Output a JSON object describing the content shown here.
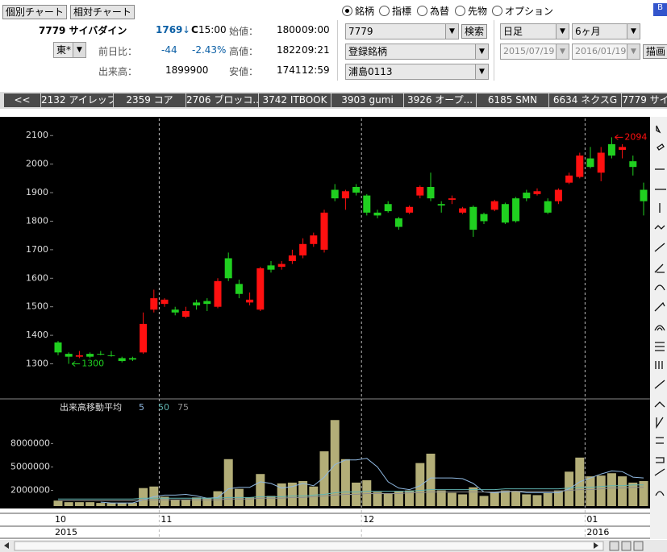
{
  "ui": {
    "buttons": [
      "個別チャート",
      "相対チャート"
    ],
    "b_button": "B",
    "symbol": "7779 サイバダイン",
    "price": "1769",
    "price_arrow": "↓",
    "close_mark": "C",
    "close_time": "15:00",
    "market": "東*",
    "change_label": "前日比：",
    "change": "-44",
    "change_pct": "-2.43%",
    "volume_label": "出来高：",
    "volume": "1899900",
    "open_label": "始値：",
    "open_value": "1800",
    "open_time": "09:00",
    "high_label": "高値：",
    "high_value": "1822",
    "high_time": "09:21",
    "low_label": "安値：",
    "low_value": "1741",
    "low_time": "12:59",
    "radios": [
      "銘柄",
      "指標",
      "為替",
      "先物",
      "オプション"
    ],
    "code_input": "7779",
    "search": "検索",
    "list_select": "登録銘柄",
    "list_name": "浦島0113",
    "period": "日足",
    "span": "6ヶ月",
    "from": "2015/07/19",
    "to": "2016/01/19",
    "draw": "描画",
    "tabs": [
      "<<",
      "2132 アイレップ",
      "2359 コア",
      "2706 ブロッコ...",
      "3742 ITBOOK",
      "3903 gumi",
      "3926 オープ...",
      "6185 SMN",
      "6634 ネクスG",
      "7779 サイ"
    ]
  },
  "chart_data": [
    {
      "type": "candlestick",
      "up_color": "#ff1010",
      "down_color": "#20d020",
      "categories": [
        "10",
        null,
        null,
        null,
        null,
        null,
        null,
        null,
        null,
        null,
        "11",
        null,
        null,
        null,
        null,
        null,
        null,
        null,
        null,
        null,
        null,
        null,
        null,
        null,
        null,
        null,
        null,
        null,
        null,
        "12",
        null,
        null,
        null,
        null,
        null,
        null,
        null,
        null,
        null,
        null,
        null,
        null,
        null,
        null,
        null,
        null,
        null,
        null,
        null,
        null,
        "01",
        null,
        null,
        null,
        null,
        null
      ],
      "years": [
        "2015",
        null,
        null,
        null,
        null,
        null,
        null,
        null,
        null,
        null,
        null,
        null,
        null,
        null,
        null,
        null,
        null,
        null,
        null,
        null,
        null,
        null,
        null,
        null,
        null,
        null,
        null,
        null,
        null,
        null,
        null,
        null,
        null,
        null,
        null,
        null,
        null,
        null,
        null,
        null,
        null,
        null,
        null,
        null,
        null,
        null,
        null,
        null,
        null,
        null,
        "2016",
        null,
        null,
        null,
        null,
        null
      ],
      "open": [
        1375,
        1335,
        1325,
        1335,
        1335,
        1330,
        1320,
        1320,
        1340,
        1490,
        1510,
        1490,
        1465,
        1515,
        1520,
        1500,
        1670,
        1580,
        1515,
        1490,
        1645,
        1640,
        1660,
        1680,
        1720,
        1700,
        1910,
        1880,
        1920,
        1890,
        1830,
        1860,
        1810,
        1830,
        1890,
        1920,
        1860,
        1875,
        1830,
        1850,
        1825,
        1840,
        1860,
        1880,
        1900,
        1895,
        1870,
        1870,
        1935,
        1955,
        2020,
        1970,
        2070,
        2050,
        2010,
        1910
      ],
      "high": [
        1380,
        1340,
        1345,
        1340,
        1345,
        1345,
        1325,
        1325,
        1480,
        1560,
        1530,
        1500,
        1500,
        1525,
        1530,
        1600,
        1690,
        1595,
        1550,
        1640,
        1660,
        1660,
        1700,
        1740,
        1760,
        1840,
        1930,
        1910,
        1930,
        1895,
        1840,
        1870,
        1815,
        1855,
        1925,
        1970,
        1870,
        1890,
        1850,
        1855,
        1830,
        1875,
        1865,
        1885,
        1910,
        1915,
        1880,
        1915,
        1970,
        2040,
        2060,
        2060,
        2094,
        2070,
        2030,
        1935
      ],
      "low": [
        1330,
        1300,
        1320,
        1320,
        1330,
        1325,
        1305,
        1310,
        1335,
        1480,
        1500,
        1470,
        1460,
        1490,
        1485,
        1495,
        1590,
        1530,
        1505,
        1485,
        1620,
        1630,
        1650,
        1670,
        1710,
        1690,
        1870,
        1840,
        1890,
        1820,
        1810,
        1830,
        1770,
        1825,
        1880,
        1870,
        1830,
        1860,
        1825,
        1745,
        1790,
        1835,
        1790,
        1795,
        1870,
        1890,
        1825,
        1860,
        1930,
        1950,
        1985,
        1940,
        2020,
        2020,
        1960,
        1820
      ],
      "close": [
        1340,
        1325,
        1330,
        1325,
        1335,
        1330,
        1310,
        1315,
        1440,
        1530,
        1525,
        1480,
        1485,
        1505,
        1510,
        1590,
        1600,
        1545,
        1525,
        1635,
        1630,
        1650,
        1680,
        1720,
        1750,
        1830,
        1880,
        1905,
        1900,
        1830,
        1820,
        1835,
        1780,
        1850,
        1920,
        1880,
        1855,
        1880,
        1845,
        1770,
        1800,
        1870,
        1795,
        1800,
        1880,
        1905,
        1830,
        1910,
        1960,
        2030,
        1990,
        2040,
        2030,
        2060,
        1990,
        1870
      ],
      "ylim": [
        1180,
        2160
      ],
      "yticks": [
        1300,
        1400,
        1500,
        1600,
        1700,
        1800,
        1900,
        2000,
        2100
      ],
      "annotations": [
        {
          "index": 1,
          "field": "low"
        },
        {
          "index": 52,
          "field": "high"
        }
      ]
    },
    {
      "type": "bar",
      "title": "出来高移動平均",
      "color": "#b3ae78",
      "values": [
        700000,
        500000,
        500000,
        500000,
        400000,
        400000,
        400000,
        400000,
        2300000,
        2500000,
        1200000,
        800000,
        800000,
        1100000,
        1000000,
        1900000,
        6000000,
        2200000,
        1100000,
        4100000,
        1300000,
        2900000,
        3000000,
        3200000,
        2500000,
        7000000,
        11000000,
        6000000,
        3000000,
        3300000,
        1800000,
        1600000,
        1900000,
        2000000,
        5500000,
        6700000,
        2000000,
        1700000,
        1500000,
        2400000,
        1300000,
        1800000,
        2000000,
        1900000,
        1500000,
        1400000,
        1700000,
        2000000,
        4400000,
        6200000,
        3800000,
        3900000,
        4200000,
        3800000,
        3000000,
        3200000
      ],
      "series": [
        {
          "name": "5",
          "color": "#8fb8e0",
          "values": [
            null,
            null,
            null,
            null,
            500000,
            400000,
            400000,
            400000,
            800000,
            1200000,
            1400000,
            1400000,
            1500000,
            1300000,
            1000000,
            1100000,
            2200000,
            2400000,
            2400000,
            3100000,
            2900000,
            2300000,
            2500000,
            2900000,
            2600000,
            3700000,
            5300000,
            5900000,
            5900000,
            6100000,
            5000000,
            3100000,
            2300000,
            2100000,
            2600000,
            3600000,
            3600000,
            3600000,
            3500000,
            2900000,
            1800000,
            1700000,
            1800000,
            1900000,
            1700000,
            1700000,
            1700000,
            1700000,
            2200000,
            3100000,
            3600000,
            4100000,
            4500000,
            4400000,
            3700000,
            3600000
          ]
        },
        {
          "name": "50",
          "color": "#5fb3b0",
          "values": [
            900000,
            900000,
            900000,
            900000,
            900000,
            900000,
            900000,
            900000,
            1000000,
            1000000,
            1000000,
            1000000,
            1000000,
            1000000,
            1000000,
            1000000,
            1100000,
            1100000,
            1100000,
            1200000,
            1200000,
            1200000,
            1300000,
            1300000,
            1400000,
            1500000,
            1700000,
            1800000,
            1800000,
            1900000,
            1900000,
            1900000,
            1900000,
            1900000,
            2000000,
            2100000,
            2100000,
            2100000,
            2100000,
            2100000,
            2100000,
            2100000,
            2200000,
            2200000,
            2200000,
            2200000,
            2200000,
            2200000,
            2300000,
            2400000,
            2400000,
            2500000,
            2600000,
            2600000,
            2700000,
            2700000
          ]
        },
        {
          "name": "75",
          "color": "#909090",
          "values": [
            700000,
            700000,
            700000,
            700000,
            700000,
            700000,
            700000,
            700000,
            800000,
            800000,
            800000,
            800000,
            800000,
            800000,
            800000,
            800000,
            900000,
            900000,
            900000,
            1000000,
            1000000,
            1000000,
            1100000,
            1100000,
            1200000,
            1300000,
            1400000,
            1500000,
            1500000,
            1600000,
            1600000,
            1600000,
            1600000,
            1700000,
            1700000,
            1800000,
            1800000,
            1800000,
            1800000,
            1800000,
            1800000,
            1800000,
            1900000,
            1900000,
            1900000,
            1900000,
            1900000,
            1900000,
            2000000,
            2100000,
            2100000,
            2200000,
            2300000,
            2300000,
            2400000,
            2400000
          ]
        }
      ],
      "ylim": [
        0,
        13500000
      ],
      "yticks": [
        2000000,
        5000000,
        8000000
      ]
    }
  ]
}
